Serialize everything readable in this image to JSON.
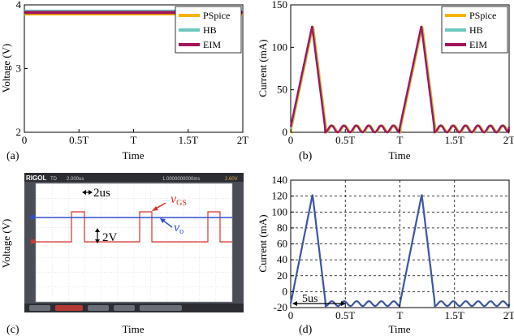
{
  "panels": {
    "a": {
      "label": "(a)",
      "xlabel": "Time",
      "ylabel": "Voltage (V)"
    },
    "b": {
      "label": "(b)",
      "xlabel": "Time",
      "ylabel": "Current (mA)"
    },
    "c": {
      "label": "(c)",
      "xlabel": "Time",
      "ylabel": "Voltage (V)",
      "annotations": {
        "time_div": "2us",
        "volt_div": "2V",
        "vgs_main": "v",
        "vgs_sub": "GS",
        "vo_main": "v",
        "vo_sub": "o"
      },
      "scope": {
        "brand": "RIGOL",
        "mode": "TD",
        "timebase": "2.000us",
        "offset": "1.0000000000ms",
        "trigger": "2.60V"
      }
    },
    "d": {
      "label": "(d)",
      "xlabel": "Time",
      "ylabel": "Current (mA)",
      "annotation": "5us"
    }
  },
  "legend": [
    "PSpice",
    "HB",
    "EIM"
  ],
  "x_ticks": [
    "0",
    "0.5T",
    "T",
    "1.5T",
    "2T"
  ],
  "colors": {
    "PSpice": "#f5b400",
    "HB": "#6cc9bf",
    "EIM": "#a3155a",
    "measured": "#3d55a3",
    "scope_ch1": "#d9332e",
    "scope_ch2": "#2f4fd1",
    "scope_bg": "#4a4d55"
  },
  "chart_data": [
    {
      "panel": "a",
      "type": "line",
      "x_ticks": [
        "0",
        "0.5T",
        "T",
        "1.5T",
        "2T"
      ],
      "ylim": [
        2,
        4
      ],
      "y_ticks": [
        2,
        3,
        4
      ],
      "series": [
        {
          "name": "PSpice",
          "x": [
            0,
            2
          ],
          "y": [
            3.86,
            3.86
          ]
        },
        {
          "name": "HB",
          "x": [
            0,
            2
          ],
          "y": [
            3.9,
            3.9
          ]
        },
        {
          "name": "EIM",
          "x": [
            0,
            2
          ],
          "y": [
            3.88,
            3.88
          ]
        }
      ]
    },
    {
      "panel": "b",
      "type": "line",
      "x_ticks": [
        "0",
        "0.5T",
        "T",
        "1.5T",
        "2T"
      ],
      "ylim": [
        0,
        150
      ],
      "y_ticks": [
        0,
        50,
        100,
        150
      ],
      "waveform": {
        "peak_x": [
          0.2,
          1.2
        ],
        "peak_y": 125,
        "ripple_mean": 4,
        "ripple_amp": 4
      },
      "series": [
        {
          "name": "PSpice"
        },
        {
          "name": "HB"
        },
        {
          "name": "EIM"
        }
      ]
    },
    {
      "panel": "d",
      "type": "line",
      "x_ticks": [
        "0",
        "0.5T",
        "T",
        "1.5T",
        "2T"
      ],
      "ylim": [
        -20,
        140
      ],
      "y_ticks": [
        -20,
        0,
        20,
        40,
        60,
        80,
        100,
        120,
        140
      ],
      "waveform": {
        "peak_x": [
          0.2,
          1.2
        ],
        "peak_y": 122,
        "ripple_mean": -15,
        "ripple_amp": 3
      }
    }
  ]
}
